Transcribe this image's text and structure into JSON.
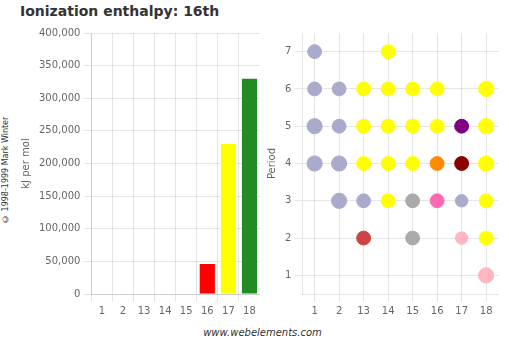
{
  "chart_data": [
    {
      "type": "bar",
      "title": "Ionization enthalpy: 16th",
      "categories": [
        "1",
        "2",
        "13",
        "14",
        "15",
        "16",
        "17",
        "18"
      ],
      "values": [
        null,
        null,
        null,
        null,
        null,
        45806,
        230000,
        330000
      ],
      "colors": [
        null,
        null,
        null,
        null,
        null,
        "#ff0000",
        "#ffff00",
        "#228B22"
      ],
      "ylabel": "kJ per mol",
      "ylim": [
        0,
        400000
      ],
      "yticks": [
        0,
        {
          "value": 50000,
          "label": "50,000"
        },
        {
          "value": 100000,
          "label": "100,000"
        },
        {
          "value": 150000,
          "label": "150,000"
        },
        {
          "value": 200000,
          "label": "200,000"
        },
        {
          "value": 250000,
          "label": "250,000"
        },
        {
          "value": 300000,
          "label": "300,000"
        },
        {
          "value": 350000,
          "label": "350,000"
        },
        {
          "value": 400000,
          "label": "400,000"
        }
      ],
      "grid": true,
      "annotations": [
        "www.webelements.com",
        "© 1998-1999 Mark Winter"
      ]
    },
    {
      "type": "bubble",
      "categories": [
        "1",
        "2",
        "13",
        "14",
        "15",
        "16",
        "17",
        "18"
      ],
      "ylabel": "Period",
      "ylim": [
        0.5,
        7.5
      ],
      "yticks": [
        1,
        2,
        3,
        4,
        5,
        6,
        7
      ],
      "grid": true,
      "points": [
        {
          "x": "18",
          "y": 1,
          "size": 120,
          "color": "#ffb6c1"
        },
        {
          "x": "13",
          "y": 2,
          "size": 100,
          "color": "#cc4444"
        },
        {
          "x": "15",
          "y": 2,
          "size": 100,
          "color": "#aaaaaa"
        },
        {
          "x": "17",
          "y": 2,
          "size": 80,
          "color": "#ffb6c1"
        },
        {
          "x": "18",
          "y": 2,
          "size": 100,
          "color": "#ffff00"
        },
        {
          "x": "2",
          "y": 3,
          "size": 120,
          "color": "#aaaacc"
        },
        {
          "x": "13",
          "y": 3,
          "size": 100,
          "color": "#aaaacc"
        },
        {
          "x": "14",
          "y": 3,
          "size": 100,
          "color": "#ffff00"
        },
        {
          "x": "15",
          "y": 3,
          "size": 100,
          "color": "#aaaaaa"
        },
        {
          "x": "16",
          "y": 3,
          "size": 100,
          "color": "#ff69b4"
        },
        {
          "x": "17",
          "y": 3,
          "size": 80,
          "color": "#aaaacc"
        },
        {
          "x": "18",
          "y": 3,
          "size": 100,
          "color": "#ffff00"
        },
        {
          "x": "1",
          "y": 4,
          "size": 120,
          "color": "#aaaacc"
        },
        {
          "x": "2",
          "y": 4,
          "size": 120,
          "color": "#aaaacc"
        },
        {
          "x": "13",
          "y": 4,
          "size": 100,
          "color": "#ffff00"
        },
        {
          "x": "14",
          "y": 4,
          "size": 100,
          "color": "#ffff00"
        },
        {
          "x": "15",
          "y": 4,
          "size": 100,
          "color": "#ffff00"
        },
        {
          "x": "16",
          "y": 4,
          "size": 100,
          "color": "#ff8c00"
        },
        {
          "x": "17",
          "y": 4,
          "size": 100,
          "color": "#8B0000"
        },
        {
          "x": "18",
          "y": 4,
          "size": 120,
          "color": "#ffff00"
        },
        {
          "x": "1",
          "y": 5,
          "size": 120,
          "color": "#aaaacc"
        },
        {
          "x": "2",
          "y": 5,
          "size": 100,
          "color": "#aaaacc"
        },
        {
          "x": "13",
          "y": 5,
          "size": 100,
          "color": "#ffff00"
        },
        {
          "x": "14",
          "y": 5,
          "size": 100,
          "color": "#ffff00"
        },
        {
          "x": "15",
          "y": 5,
          "size": 100,
          "color": "#ffff00"
        },
        {
          "x": "16",
          "y": 5,
          "size": 100,
          "color": "#ffff00"
        },
        {
          "x": "17",
          "y": 5,
          "size": 100,
          "color": "#800080"
        },
        {
          "x": "18",
          "y": 5,
          "size": 120,
          "color": "#ffff00"
        },
        {
          "x": "1",
          "y": 6,
          "size": 100,
          "color": "#aaaacc"
        },
        {
          "x": "2",
          "y": 6,
          "size": 100,
          "color": "#aaaacc"
        },
        {
          "x": "13",
          "y": 6,
          "size": 100,
          "color": "#ffff00"
        },
        {
          "x": "14",
          "y": 6,
          "size": 100,
          "color": "#ffff00"
        },
        {
          "x": "15",
          "y": 6,
          "size": 100,
          "color": "#ffff00"
        },
        {
          "x": "16",
          "y": 6,
          "size": 100,
          "color": "#ffff00"
        },
        {
          "x": "18",
          "y": 6,
          "size": 120,
          "color": "#ffff00"
        },
        {
          "x": "1",
          "y": 7,
          "size": 100,
          "color": "#aaaacc"
        },
        {
          "x": "14",
          "y": 7,
          "size": 100,
          "color": "#ffff00"
        }
      ]
    }
  ]
}
